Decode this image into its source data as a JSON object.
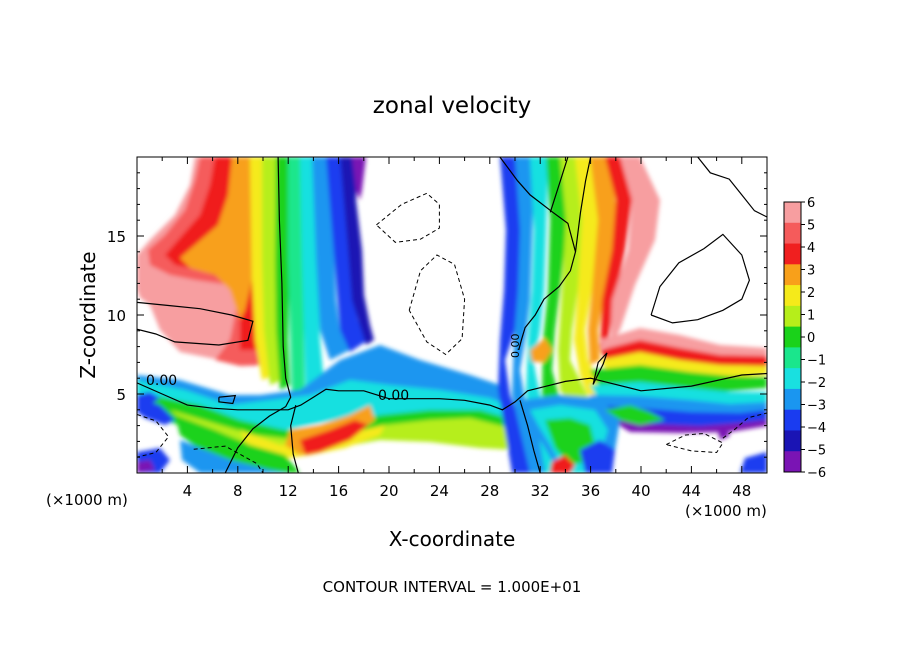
{
  "chart_data": {
    "type": "heatmap",
    "title": "zonal velocity",
    "xlabel": "X-coordinate",
    "ylabel": "Z-coordinate",
    "x_unit_left": "(×1000 m)",
    "x_unit_right": "(×1000 m)",
    "footer": "CONTOUR INTERVAL = 1.000E+01",
    "xlim": [
      0,
      50
    ],
    "ylim": [
      0,
      20
    ],
    "x_ticks": [
      "4",
      "8",
      "12",
      "16",
      "20",
      "24",
      "28",
      "32",
      "36",
      "40",
      "44",
      "48"
    ],
    "y_ticks": [
      "5",
      "10",
      "15"
    ],
    "colorbar": {
      "levels": [
        6,
        5,
        4,
        3,
        2,
        1,
        0,
        -1,
        -2,
        -3,
        -4,
        -5,
        -6
      ],
      "labels": [
        "6",
        "5",
        "4",
        "3",
        "2",
        "1",
        "0",
        "−1",
        "−2",
        "−3",
        "−4",
        "−5",
        "−6"
      ],
      "colors": [
        "#f79ea0",
        "#f55b5b",
        "#f01f1f",
        "#f8a01a",
        "#f5ea1a",
        "#b6ee1a",
        "#1ad21a",
        "#1ae68c",
        "#19e0e0",
        "#1a96f0",
        "#1a3cf0",
        "#1a14b4",
        "#7a14b4"
      ]
    },
    "contour_labels": [
      "0.00",
      "0.00",
      "0.00"
    ],
    "contour_lines": [
      {
        "style": "solid",
        "points": [
          [
            0,
            5.7
          ],
          [
            2,
            5.0
          ],
          [
            4,
            4.3
          ],
          [
            6,
            4.1
          ],
          [
            8,
            4.0
          ],
          [
            10,
            4.0
          ],
          [
            12,
            4.0
          ],
          [
            13,
            4.3
          ],
          [
            14,
            4.8
          ],
          [
            15,
            5.3
          ],
          [
            16,
            5.2
          ],
          [
            18,
            5.2
          ],
          [
            20,
            4.7
          ],
          [
            24,
            4.7
          ],
          [
            26,
            4.6
          ],
          [
            28,
            4.3
          ],
          [
            29,
            4.0
          ],
          [
            30,
            4.5
          ],
          [
            31,
            5.2
          ],
          [
            32,
            5.4
          ],
          [
            34,
            5.8
          ],
          [
            36,
            6.0
          ],
          [
            40,
            5.2
          ],
          [
            44,
            5.5
          ],
          [
            48,
            6.2
          ],
          [
            50,
            6.3
          ]
        ]
      },
      {
        "style": "solid",
        "points": [
          [
            11.2,
            20
          ],
          [
            11.3,
            16
          ],
          [
            11.5,
            12
          ],
          [
            11.6,
            8
          ],
          [
            11.8,
            6
          ],
          [
            12.2,
            4.8
          ],
          [
            11.8,
            4.2
          ],
          [
            10.5,
            3.6
          ],
          [
            9.2,
            2.8
          ],
          [
            8,
            1.6
          ],
          [
            7,
            0
          ]
        ]
      },
      {
        "style": "solid",
        "points": [
          [
            12.6,
            4.3
          ],
          [
            12.2,
            3.0
          ],
          [
            12.4,
            1.2
          ],
          [
            12.8,
            0
          ]
        ]
      },
      {
        "style": "solid",
        "points": [
          [
            30.4,
            4.6
          ],
          [
            31,
            3.0
          ],
          [
            31.5,
            1.4
          ],
          [
            32,
            0
          ]
        ]
      },
      {
        "style": "solid",
        "points": [
          [
            28.8,
            20
          ],
          [
            30.2,
            18.5
          ],
          [
            31.2,
            17.6
          ],
          [
            33,
            16.5
          ],
          [
            34.2,
            15.8
          ],
          [
            34.8,
            14.0
          ],
          [
            34.4,
            12.8
          ],
          [
            33.5,
            11.8
          ],
          [
            32.3,
            11.0
          ],
          [
            31.6,
            10.0
          ],
          [
            30.8,
            9.2
          ],
          [
            30.5,
            8.4
          ],
          [
            30.3,
            7.8
          ]
        ]
      },
      {
        "style": "solid",
        "points": [
          [
            32.8,
            16.5
          ],
          [
            33.6,
            18.5
          ],
          [
            34.2,
            20
          ]
        ]
      },
      {
        "style": "solid",
        "points": [
          [
            34.8,
            14.0
          ],
          [
            35.2,
            16.5
          ],
          [
            35.6,
            18.5
          ],
          [
            36.0,
            20
          ]
        ]
      },
      {
        "style": "solid",
        "points": [
          [
            0,
            10.8
          ],
          [
            2.5,
            10.6
          ],
          [
            5,
            10.4
          ],
          [
            7.5,
            10.0
          ],
          [
            9.2,
            9.6
          ],
          [
            8.8,
            8.4
          ],
          [
            6.5,
            8.1
          ],
          [
            3,
            8.3
          ],
          [
            1.5,
            8.8
          ],
          [
            0,
            9.1
          ]
        ]
      },
      {
        "style": "solid",
        "points": [
          [
            40.8,
            10.0
          ],
          [
            41.5,
            11.8
          ],
          [
            43.0,
            13.3
          ],
          [
            45.0,
            14.2
          ],
          [
            46.5,
            15.1
          ],
          [
            48.0,
            13.8
          ],
          [
            48.6,
            12.2
          ],
          [
            48.0,
            11.0
          ],
          [
            46.5,
            10.3
          ],
          [
            44.5,
            9.7
          ],
          [
            42.5,
            9.5
          ],
          [
            40.8,
            10.0
          ]
        ]
      },
      {
        "style": "solid",
        "points": [
          [
            44.5,
            20
          ],
          [
            45.5,
            19.0
          ],
          [
            47.0,
            18.6
          ],
          [
            48.0,
            17.6
          ],
          [
            49.0,
            16.6
          ],
          [
            50.0,
            16.2
          ]
        ]
      },
      {
        "style": "solid",
        "points": [
          [
            36.2,
            5.6
          ],
          [
            37.0,
            6.9
          ],
          [
            37.3,
            7.6
          ],
          [
            36.6,
            7.0
          ],
          [
            36.2,
            5.6
          ]
        ]
      },
      {
        "style": "solid",
        "points": [
          [
            6.5,
            4.8
          ],
          [
            7.8,
            4.9
          ],
          [
            7.6,
            4.4
          ],
          [
            6.5,
            4.5
          ],
          [
            6.5,
            4.8
          ]
        ]
      },
      {
        "style": "dashed",
        "points": [
          [
            19.0,
            15.7
          ],
          [
            21.0,
            17.0
          ],
          [
            23.0,
            17.7
          ],
          [
            24.0,
            17.0
          ],
          [
            24.0,
            15.5
          ],
          [
            22.5,
            14.8
          ],
          [
            20.5,
            14.6
          ],
          [
            19.0,
            15.7
          ]
        ]
      },
      {
        "style": "dashed",
        "points": [
          [
            21.6,
            10.3
          ],
          [
            22.5,
            12.8
          ],
          [
            23.8,
            13.8
          ],
          [
            25.2,
            13.2
          ],
          [
            26.0,
            11.0
          ],
          [
            25.8,
            8.5
          ],
          [
            24.5,
            7.5
          ],
          [
            23.0,
            8.3
          ],
          [
            21.6,
            10.3
          ]
        ]
      },
      {
        "style": "dashed",
        "points": [
          [
            0,
            3.7
          ],
          [
            1.5,
            3.3
          ],
          [
            2.5,
            2.3
          ],
          [
            1.5,
            1.3
          ],
          [
            0,
            1.0
          ]
        ]
      },
      {
        "style": "dashed",
        "points": [
          [
            4.5,
            1.5
          ],
          [
            7.0,
            1.7
          ],
          [
            9.5,
            0.6
          ],
          [
            10.0,
            0
          ]
        ]
      },
      {
        "style": "dashed",
        "points": [
          [
            42.0,
            1.8
          ],
          [
            43.5,
            2.4
          ],
          [
            45.0,
            2.5
          ],
          [
            46.5,
            1.9
          ],
          [
            46.0,
            1.3
          ],
          [
            44.0,
            1.4
          ],
          [
            42.0,
            1.8
          ]
        ]
      },
      {
        "style": "dashed",
        "points": [
          [
            46.5,
            2.2
          ],
          [
            47.5,
            2.8
          ],
          [
            48.5,
            3.5
          ],
          [
            50.0,
            3.8
          ]
        ]
      }
    ]
  }
}
